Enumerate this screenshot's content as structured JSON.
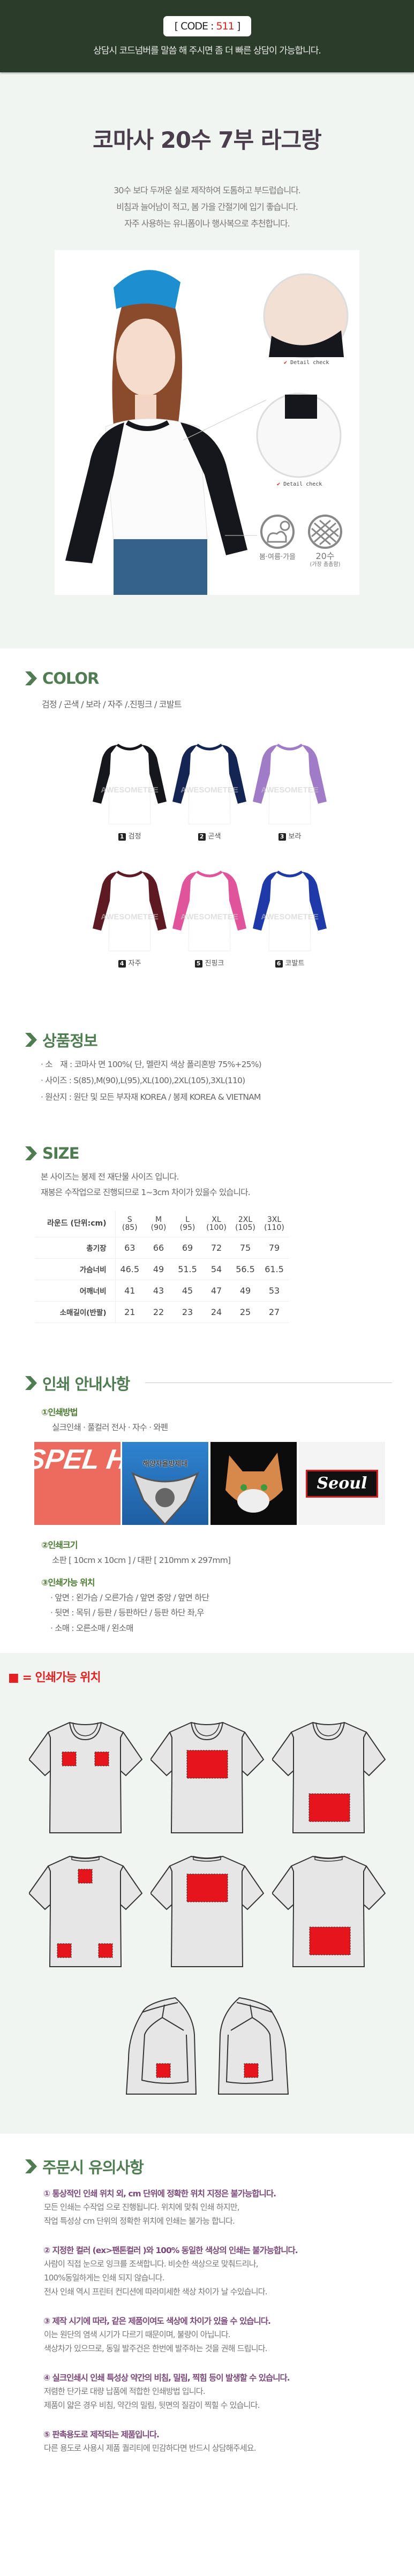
{
  "header": {
    "code_prefix": "[ CODE : ",
    "code_number": "511",
    "code_suffix": " ]",
    "message": "상담시 코드넘버를 말씀 해 주시면 좀 더 빠른 상담이 가능합니다."
  },
  "product": {
    "title": "코마사 20수 7부 라그랑",
    "description": [
      "30수 보다 두꺼운 실로 제작하여 도톰하고 부드럽습니다.",
      "비침과 늘어남이 적고, 봄 가을 간절기에 입기 좋습니다.",
      "자주 사용하는 유니폼이나 행사복으로 추천합니다."
    ],
    "detail_check": "Detail check",
    "season_label": "봄·여름·가을",
    "yarn_label": "20수",
    "yarn_note": "(가장 촘촘함)",
    "colors": {
      "accent": "#4f7c50",
      "header_bg": "#2c3c2b",
      "code_red": "#e41b1b"
    }
  },
  "color_section": {
    "heading": "COLOR",
    "list": "검정 / 곤색 / 보라 / 자주 /.진핑크 / 코발트",
    "watermark": "AWESOMETEE",
    "items": [
      {
        "num": "1",
        "label": "검정",
        "hex": "#15171c"
      },
      {
        "num": "2",
        "label": "곤색",
        "hex": "#142553"
      },
      {
        "num": "3",
        "label": "보라",
        "hex": "#a07cc6"
      },
      {
        "num": "4",
        "label": "자주",
        "hex": "#5e1a22"
      },
      {
        "num": "5",
        "label": "진핑크",
        "hex": "#e0549c"
      },
      {
        "num": "6",
        "label": "코발트",
        "hex": "#1d3aa8"
      }
    ]
  },
  "info_section": {
    "heading": "상품정보",
    "lines": [
      "· 소　재 : 코마사 면 100%( 단, 멜란지 색상 폴리혼방 75%+25%)",
      "· 사이즈 : S(85),M(90),L(95),XL(100),2XL(105),3XL(110)",
      "· 원산지 : 원단 및 모든 부자재 KOREA / 봉제 KOREA & VIETNAM"
    ]
  },
  "size_section": {
    "heading": "SIZE",
    "notes": [
      "본 사이즈는 봉제 전 재단물 사이즈 입니다.",
      "재봉은 수작업으로 진행되므로  1~3cm 차이가 있을수 있습니다."
    ],
    "corner": "라운드 (단위:cm)",
    "columns": [
      [
        "S",
        "(85)"
      ],
      [
        "M",
        "(90)"
      ],
      [
        "L",
        "(95)"
      ],
      [
        "XL",
        "(100)"
      ],
      [
        "2XL",
        "(105)"
      ],
      [
        "3XL",
        "(110)"
      ]
    ],
    "rows": [
      {
        "label": "총기장",
        "values": [
          "63",
          "66",
          "69",
          "72",
          "75",
          "79"
        ]
      },
      {
        "label": "가슴너비",
        "values": [
          "46.5",
          "49",
          "51.5",
          "54",
          "56.5",
          "61.5"
        ]
      },
      {
        "label": "어깨너비",
        "values": [
          "41",
          "43",
          "45",
          "47",
          "49",
          "53"
        ]
      },
      {
        "label": "소매길이(반팔)",
        "values": [
          "21",
          "22",
          "23",
          "24",
          "25",
          "27"
        ]
      }
    ]
  },
  "print_section": {
    "heading": "인쇄 안내사항",
    "method_title": "①인쇄방법",
    "method_text": "실크인쇄 · 풀컬러 전사 · 자수 · 와펜",
    "sample_texts": {
      "silk": "SPEL HA",
      "transfer": "해양자율방제대",
      "patch": "Seoul"
    },
    "size_title": "②인쇄크기",
    "size_text": "소판 [ 10cm x 10cm ] / 대판 [ 210mm x 297mm]",
    "position_title": "③인쇄가능 위치",
    "position_lines": [
      "· 앞면 : 왼가슴 / 오른가슴 / 앞면 중앙 / 앞면 하단",
      "· 뒷면 : 목뒤 / 등판 / 등판하단 /  등판 하단 좌,우",
      "· 소매 : 오른소매 / 왼소매"
    ]
  },
  "position_section": {
    "legend": "= 인쇄가능 위치",
    "mark_color": "#e6141b"
  },
  "notice_section": {
    "heading": "주문시 유의사항",
    "items": [
      {
        "title": "① 통상적인 인쇄 위치 외, cm 단위에 정확한 위치 지정은 불가능합니다.",
        "lines": [
          "모든 인쇄는 수작업 으로 진행됩니다.  위치에 맞춰 인쇄 하지만,",
          "작업 특성상 cm 단위의 정확한 위치에 인쇄는 불가능 합니다."
        ]
      },
      {
        "title": "② 지정한 컬러 (ex>팬톤컬러 )와 100% 동일한 색상의 인쇄는 불가능합니다.",
        "lines": [
          "사람이 직접 눈으로 잉크를 조색합니다. 비슷한 색상으로 맞춰드리나,",
          "100%동일하게는 인쇄 되지 않습니다.",
          "전사 인쇄 역시 프린터 컨디션에 따라미세한 색상 차이가 날 수있습니다."
        ]
      },
      {
        "title": "③ 제작 시기에 따라, 같은 제품이여도 색상에 차이가 있을 수 있습니다.",
        "lines": [
          "이는 원단의 염색 시기가 다르기 때문이며, 불량이 아닙니다.",
          "색상차가 있으므로, 동일 발주건은 한번에 발주하는 것을 권해 드립니다."
        ]
      },
      {
        "title": "④ 실크인쇄시 인쇄 특성상 약간의 비침, 밀림, 찍힘 등이 발생할 수 있습니다.",
        "lines": [
          "저렴한 단가로 대량 납품에 적합한 인쇄방법 입니다.",
          "제품이 얇은 경우 비침, 약간의 밀림, 뒷면의 질감이 찍힐 수 있습니다."
        ]
      },
      {
        "title": "⑤ 판촉용도로 제작되는 제품입니다.",
        "lines": [
          "다른 용도로 사용시 제품 퀄리티에 민감하다면 반드시 상담해주세요."
        ]
      }
    ]
  }
}
